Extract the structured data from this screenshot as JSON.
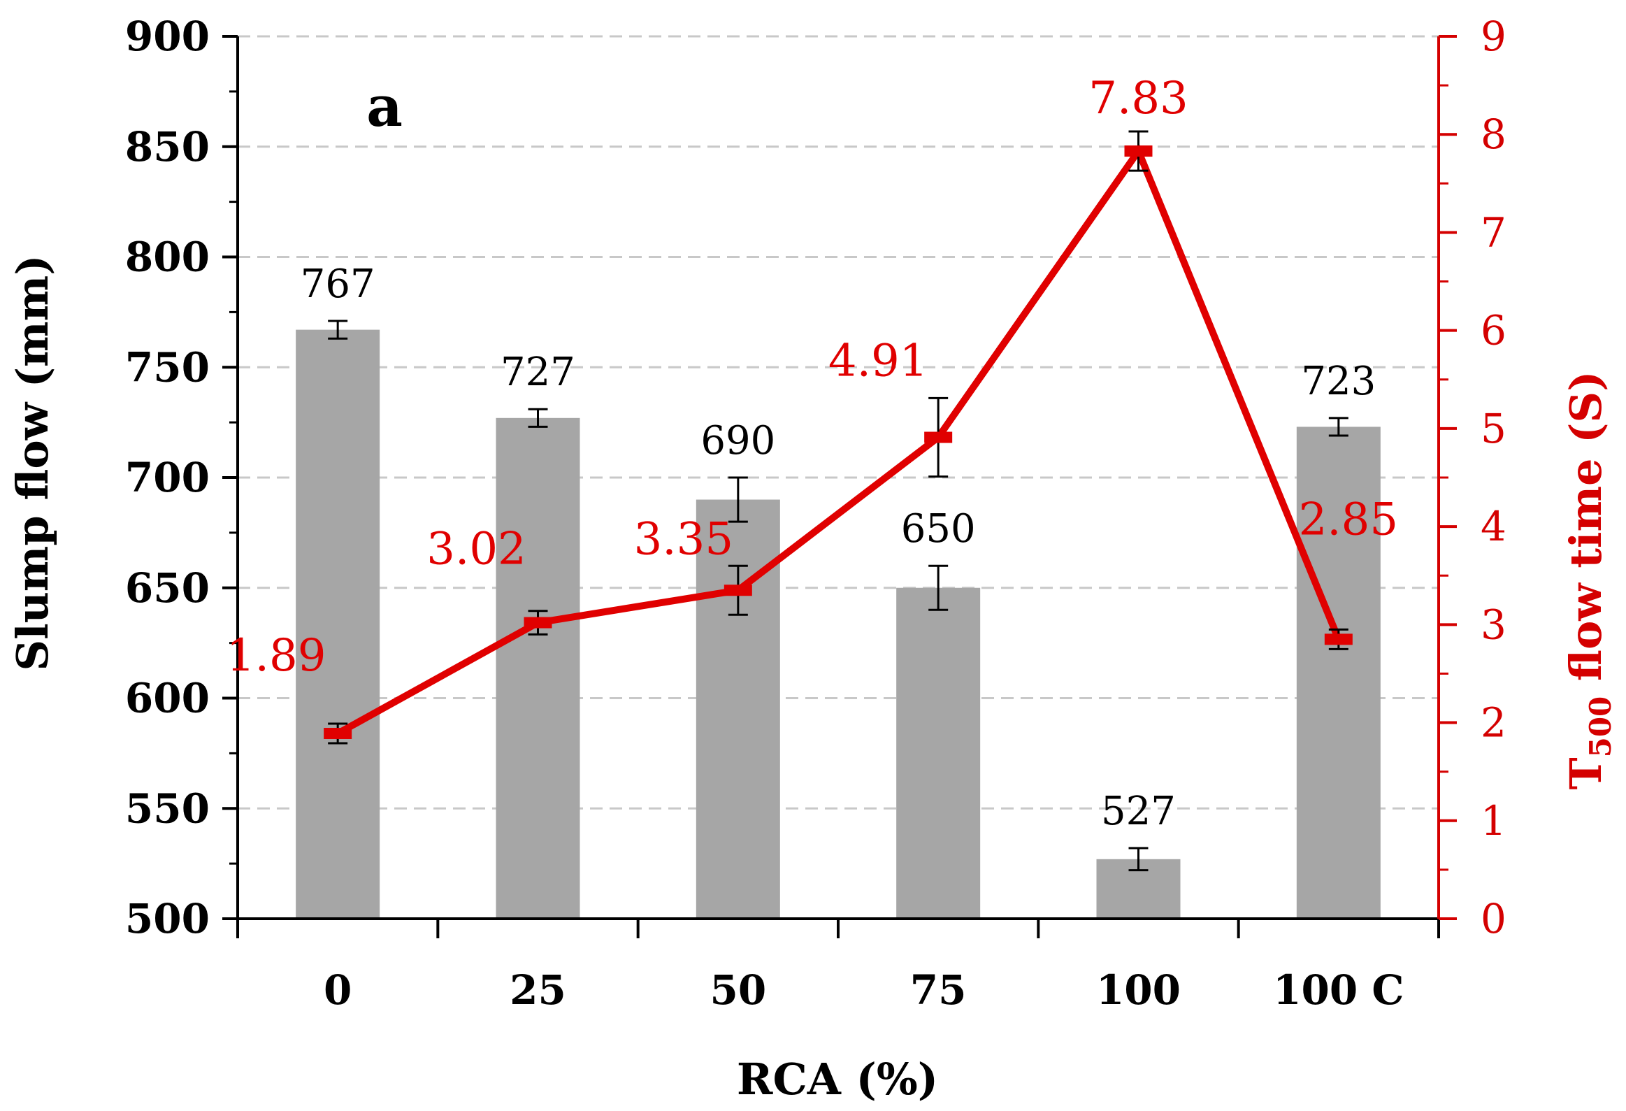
{
  "chart_data": {
    "type": "bar",
    "panel_label": "a",
    "categories": [
      "0",
      "25",
      "50",
      "75",
      "100",
      "100 C"
    ],
    "xlabel": "RCA (%)",
    "ylabel": "Slump flow (mm)",
    "ylim": [
      500,
      900
    ],
    "yticks": [
      500,
      550,
      600,
      650,
      700,
      750,
      800,
      850,
      900
    ],
    "y2label_main": "T",
    "y2label_sub": "500",
    "y2label_rest": " flow time (S)",
    "y2lim": [
      0,
      9
    ],
    "y2ticks": [
      0,
      1,
      2,
      3,
      4,
      5,
      6,
      7,
      8,
      9
    ],
    "grid": true,
    "series": [
      {
        "name": "Slump flow",
        "type": "bar",
        "axis": "left",
        "color": "#a6a6a6",
        "values": [
          767,
          727,
          690,
          650,
          527,
          723
        ],
        "labels": [
          "767",
          "727",
          "690",
          "650",
          "527",
          "723"
        ],
        "errors": [
          4,
          4,
          10,
          10,
          5,
          4
        ]
      },
      {
        "name": "T500 flow time",
        "type": "line",
        "axis": "right",
        "color": "#e00000",
        "values": [
          1.89,
          3.02,
          3.35,
          4.91,
          7.83,
          2.85
        ],
        "labels": [
          "1.89",
          "3.02",
          "3.35",
          "4.91",
          "7.83",
          "2.85"
        ],
        "errors": [
          0.1,
          0.12,
          0.25,
          0.4,
          0.2,
          0.1
        ]
      }
    ]
  }
}
